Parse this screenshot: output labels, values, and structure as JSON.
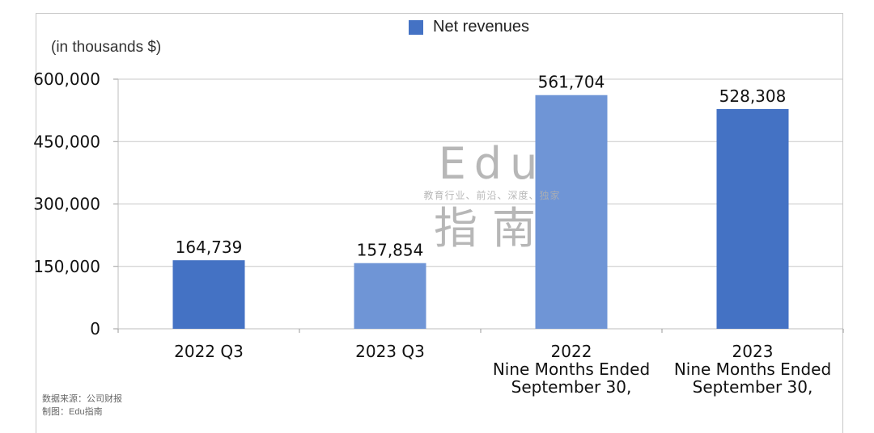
{
  "chart_data": {
    "type": "bar",
    "title": "",
    "legend": {
      "label": "Net revenues",
      "color": "#4472c4",
      "placement": "top-center"
    },
    "unit_label": "(in thousands $)",
    "categories": [
      [
        "2022 Q3"
      ],
      [
        "2023 Q3"
      ],
      [
        "2022",
        "Nine Months Ended",
        "September 30,"
      ],
      [
        "2023",
        "Nine Months Ended",
        "September 30,"
      ]
    ],
    "values": [
      164739,
      157854,
      561704,
      528308
    ],
    "value_labels": [
      "164,739",
      "157,854",
      "561,704",
      "528,308"
    ],
    "bar_colors": [
      "#4472c4",
      "#6f95d6",
      "#6f95d6",
      "#4472c4"
    ],
    "ylim": [
      0,
      600000
    ],
    "yticks": [
      0,
      150000,
      300000,
      450000,
      600000
    ],
    "ytick_labels": [
      "0",
      "150,000",
      "300,000",
      "450,000",
      "600,000"
    ],
    "grid": true
  },
  "watermark": {
    "line1": "Edu",
    "line2": "教育行业、前沿、深度、独家",
    "line3": "指南"
  },
  "footer": {
    "source": "数据来源：公司财报",
    "credit": "制图：Edu指南"
  }
}
